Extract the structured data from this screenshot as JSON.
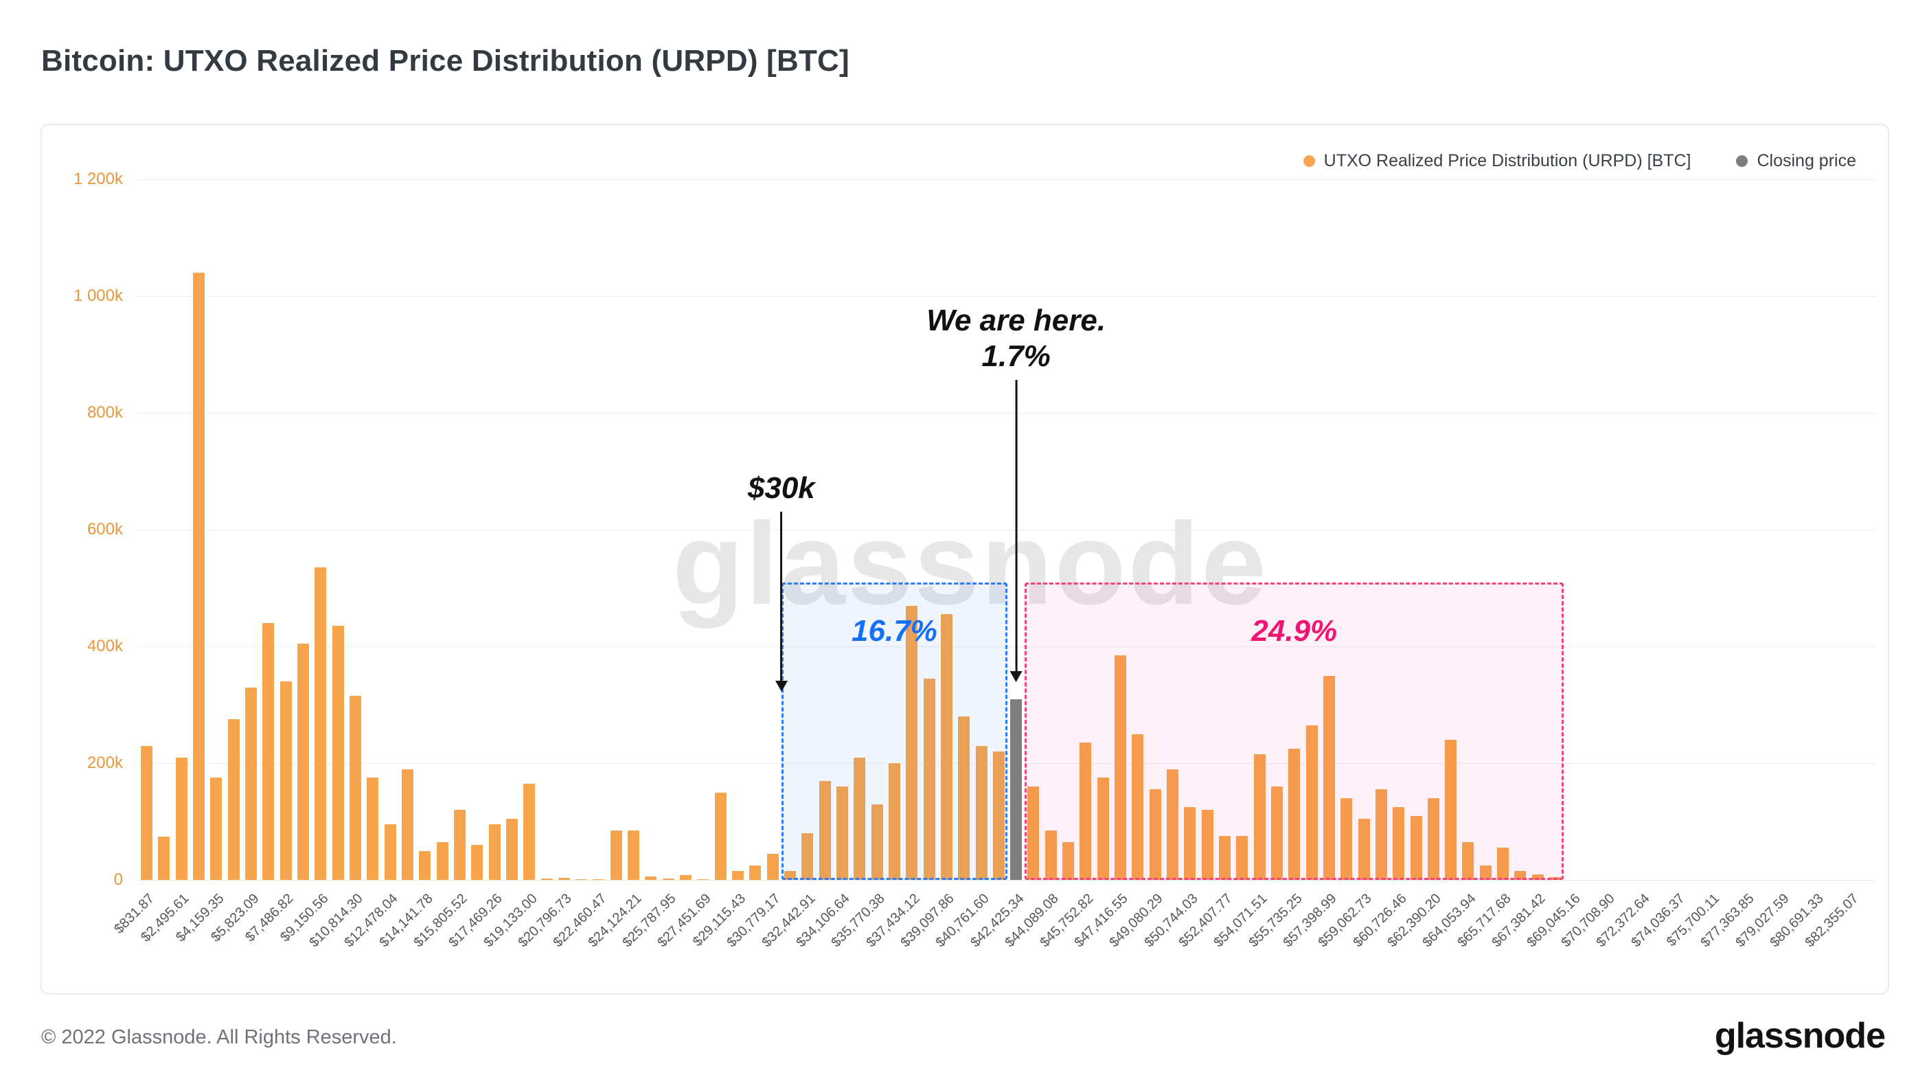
{
  "page": {
    "title": "Bitcoin: UTXO Realized Price Distribution (URPD) [BTC]",
    "watermark": "glassnode",
    "footer_copyright": "© 2022 Glassnode. All Rights Reserved.",
    "brand_logo": "glassnode"
  },
  "legend": {
    "items": [
      {
        "label": "UTXO Realized Price Distribution (URPD) [BTC]",
        "color": "#F7A44C"
      },
      {
        "label": "Closing price",
        "color": "#7E7E7E"
      }
    ]
  },
  "annotations": {
    "here_line1": "We are here.",
    "here_line2": "1.7%",
    "price_marker": "$30k",
    "blue_pct": "16.7%",
    "pink_pct": "24.9%"
  },
  "chart_data": {
    "type": "bar",
    "title": "Bitcoin: UTXO Realized Price Distribution (URPD) [BTC]",
    "xlabel": "",
    "ylabel": "",
    "grid": "horizontal",
    "legend_position": "top-right",
    "ylim": [
      0,
      1200000
    ],
    "ytick_values": [
      0,
      200000,
      400000,
      600000,
      800000,
      1000000,
      1200000
    ],
    "ytick_labels": [
      "0",
      "200k",
      "400k",
      "600k",
      "800k",
      "1 000k",
      "1 200k"
    ],
    "num_buckets": 100,
    "buckets_per_label": 2,
    "x_tick_labels": [
      "$831.87",
      "$2,495.61",
      "$4,159.35",
      "$5,823.09",
      "$7,486.82",
      "$9,150.56",
      "$10,814.30",
      "$12,478.04",
      "$14,141.78",
      "$15,805.52",
      "$17,469.26",
      "$19,133.00",
      "$20,796.73",
      "$22,460.47",
      "$24,124.21",
      "$25,787.95",
      "$27,451.69",
      "$29,115.43",
      "$30,779.17",
      "$32,442.91",
      "$34,106.64",
      "$35,770.38",
      "$37,434.12",
      "$39,097.86",
      "$40,761.60",
      "$42,425.34",
      "$44,089.08",
      "$45,752.82",
      "$47,416.55",
      "$49,080.29",
      "$50,744.03",
      "$52,407.77",
      "$54,071.51",
      "$55,735.25",
      "$57,398.99",
      "$59,062.73",
      "$60,726.46",
      "$62,390.20",
      "$64,053.94",
      "$65,717.68",
      "$67,381.42",
      "$69,045.16",
      "$70,708.90",
      "$72,372.64",
      "$74,036.37",
      "$75,700.11",
      "$77,363.85",
      "$79,027.59",
      "$80,691.33",
      "$82,355.07"
    ],
    "series": [
      {
        "name": "UTXO Realized Price Distribution (URPD) [BTC]",
        "color": "#F7A44C",
        "values": [
          230000,
          74000,
          210000,
          1040000,
          175000,
          275000,
          330000,
          440000,
          340000,
          405000,
          535000,
          435000,
          315000,
          175000,
          95000,
          190000,
          50000,
          65000,
          120000,
          60000,
          95000,
          105000,
          165000,
          2000,
          4000,
          1000,
          1000,
          85000,
          85000,
          6000,
          2000,
          8000,
          1000,
          150000,
          15000,
          25000,
          45000,
          15000,
          80000,
          170000,
          160000,
          210000,
          130000,
          200000,
          470000,
          345000,
          455000,
          280000,
          230000,
          220000,
          0,
          160000,
          85000,
          65000,
          235000,
          175000,
          385000,
          250000,
          155000,
          190000,
          125000,
          120000,
          75000,
          75000,
          215000,
          160000,
          225000,
          265000,
          350000,
          140000,
          105000,
          155000,
          125000,
          110000,
          140000,
          240000,
          65000,
          25000,
          55000,
          15000,
          10000,
          5000,
          0,
          0,
          0,
          0,
          0,
          0,
          0,
          0,
          0,
          0,
          0,
          0,
          0,
          0,
          0,
          0,
          0,
          0
        ]
      }
    ],
    "closing_price": {
      "label": "Closing price",
      "bucket": 50,
      "value": 310000,
      "color": "#7E7E7E"
    },
    "regions": [
      {
        "name": "blue-region",
        "start_bucket": 37,
        "end_bucket": 50,
        "top_value": 510000,
        "border": "#2e7cf6",
        "fill": "rgba(59,130,246,0.07)",
        "label": "16.7%",
        "label_color": "#156ff7"
      },
      {
        "name": "pink-region",
        "start_bucket": 51,
        "end_bucket": 82,
        "top_value": 510000,
        "border": "#f0447e",
        "fill": "rgba(240,20,115,0.06)",
        "label": "24.9%",
        "label_color": "#f01573"
      }
    ]
  }
}
